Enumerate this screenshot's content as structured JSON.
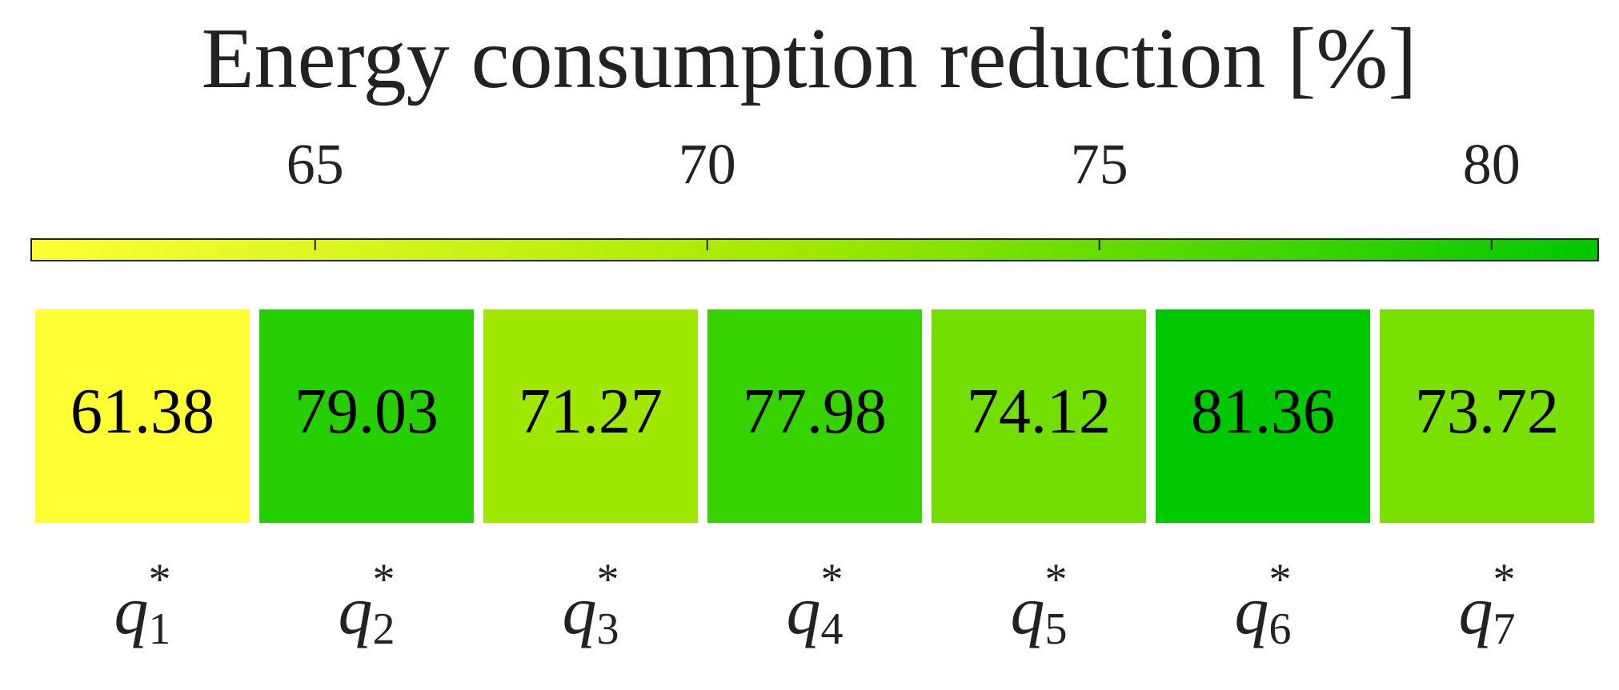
{
  "chart_data": {
    "type": "heatmap",
    "title": "Energy consumption reduction [%]",
    "categories": [
      {
        "base": "q",
        "sub": "1",
        "sup": "*"
      },
      {
        "base": "q",
        "sub": "2",
        "sup": "*"
      },
      {
        "base": "q",
        "sub": "3",
        "sup": "*"
      },
      {
        "base": "q",
        "sub": "4",
        "sup": "*"
      },
      {
        "base": "q",
        "sub": "5",
        "sup": "*"
      },
      {
        "base": "q",
        "sub": "6",
        "sup": "*"
      },
      {
        "base": "q",
        "sub": "7",
        "sup": "*"
      }
    ],
    "values": [
      61.38,
      79.03,
      71.27,
      77.98,
      74.12,
      81.36,
      73.72
    ],
    "colormap": [
      "#ffff33",
      "#9fe800",
      "#00c800"
    ],
    "clim": [
      61.38,
      81.36
    ],
    "cticks": [
      65,
      70,
      75,
      80
    ]
  }
}
